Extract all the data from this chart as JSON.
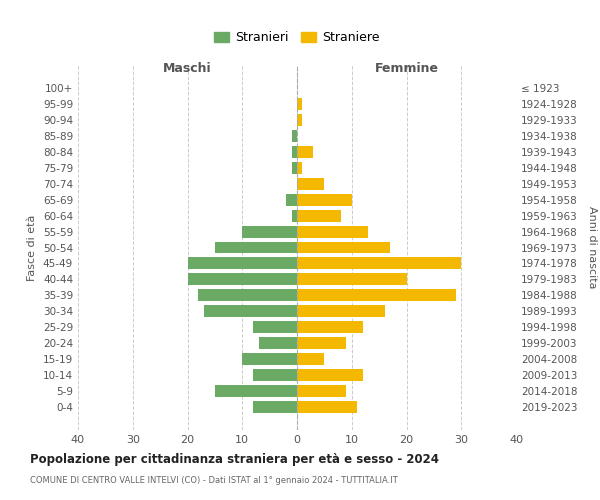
{
  "age_groups": [
    "0-4",
    "5-9",
    "10-14",
    "15-19",
    "20-24",
    "25-29",
    "30-34",
    "35-39",
    "40-44",
    "45-49",
    "50-54",
    "55-59",
    "60-64",
    "65-69",
    "70-74",
    "75-79",
    "80-84",
    "85-89",
    "90-94",
    "95-99",
    "100+"
  ],
  "birth_years": [
    "2019-2023",
    "2014-2018",
    "2009-2013",
    "2004-2008",
    "1999-2003",
    "1994-1998",
    "1989-1993",
    "1984-1988",
    "1979-1983",
    "1974-1978",
    "1969-1973",
    "1964-1968",
    "1959-1963",
    "1954-1958",
    "1949-1953",
    "1944-1948",
    "1939-1943",
    "1934-1938",
    "1929-1933",
    "1924-1928",
    "≤ 1923"
  ],
  "males": [
    8,
    15,
    8,
    10,
    7,
    8,
    17,
    18,
    20,
    20,
    15,
    10,
    1,
    2,
    0,
    1,
    1,
    1,
    0,
    0,
    0
  ],
  "females": [
    11,
    9,
    12,
    5,
    9,
    12,
    16,
    29,
    20,
    30,
    17,
    13,
    8,
    10,
    5,
    1,
    3,
    0,
    1,
    1,
    0
  ],
  "male_color": "#6aaa64",
  "female_color": "#f5b800",
  "background_color": "#ffffff",
  "grid_color": "#cccccc",
  "title": "Popolazione per cittadinanza straniera per età e sesso - 2024",
  "subtitle": "COMUNE DI CENTRO VALLE INTELVI (CO) - Dati ISTAT al 1° gennaio 2024 - TUTTITALIA.IT",
  "xlabel_left": "Maschi",
  "xlabel_right": "Femmine",
  "ylabel_left": "Fasce di età",
  "ylabel_right": "Anni di nascita",
  "legend_male": "Stranieri",
  "legend_female": "Straniere",
  "xlim": 40
}
